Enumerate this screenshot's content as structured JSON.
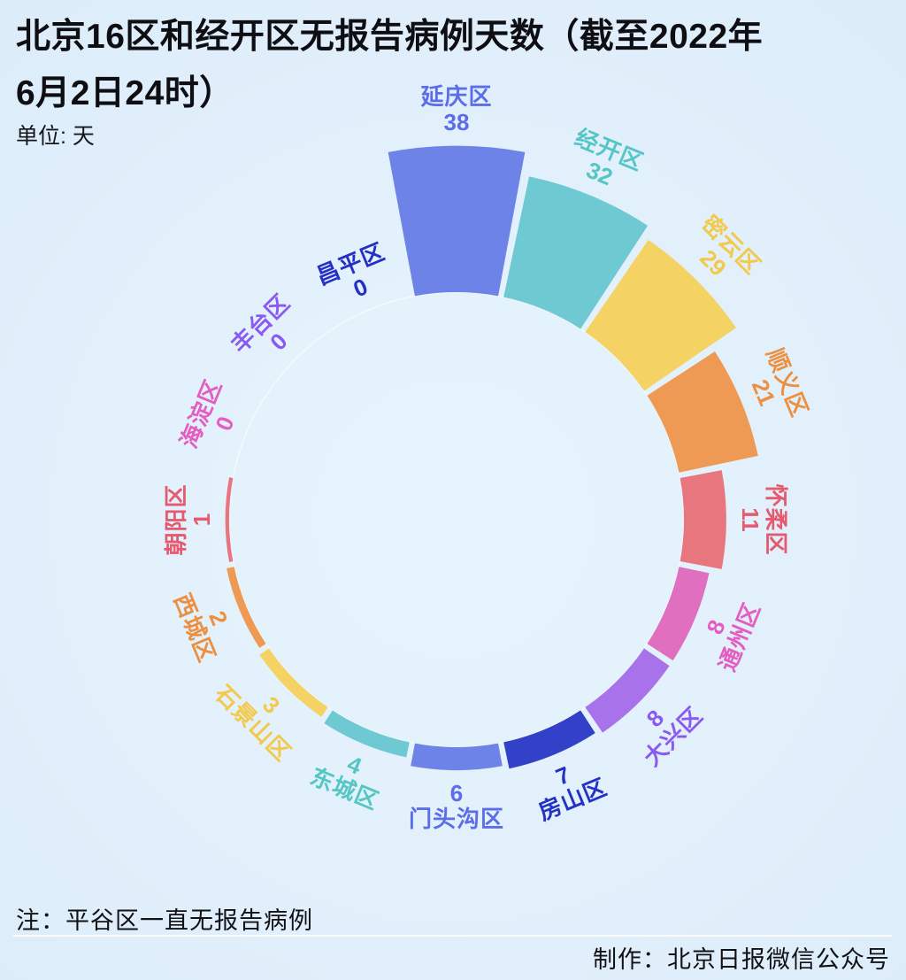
{
  "header": {
    "title_line1": "北京16区和经开区无报告病例天数（截至2022年",
    "title_line2": "6月2日24时）",
    "unit_label": "单位: 天"
  },
  "footer": {
    "note": "注：平谷区一直无报告病例",
    "credit": "制作：北京日报微信公众号"
  },
  "chart_data": {
    "type": "bar",
    "subtype": "radial-bar-clock",
    "title": "北京16区和经开区无报告病例天数（截至2022年6月2日24时）",
    "unit": "天",
    "categories": [
      "延庆区",
      "经开区",
      "密云区",
      "顺义区",
      "怀柔区",
      "通州区",
      "大兴区",
      "房山区",
      "门头沟区",
      "东城区",
      "石景山区",
      "西城区",
      "朝阳区",
      "海淀区",
      "丰台区",
      "昌平区"
    ],
    "values": [
      38,
      32,
      29,
      21,
      11,
      8,
      8,
      7,
      6,
      4,
      3,
      2,
      1,
      0,
      0,
      0
    ],
    "ylim": [
      0,
      38
    ],
    "start_angle_deg": 0,
    "clockwise": true,
    "grid": false,
    "legend": false,
    "bar_colors": [
      "#6d83e8",
      "#6ec9d3",
      "#f5d264",
      "#ee9a55",
      "#e8767f",
      "#e06fc0",
      "#a873ea",
      "#3340c8"
    ],
    "label_colors": [
      "#5b6ee8",
      "#56c6c4",
      "#f2c94b",
      "#ec8f40",
      "#e55a6e",
      "#e35ec0",
      "#8a5af0",
      "#2430c6"
    ],
    "base_circle_color": "#ffffff"
  }
}
